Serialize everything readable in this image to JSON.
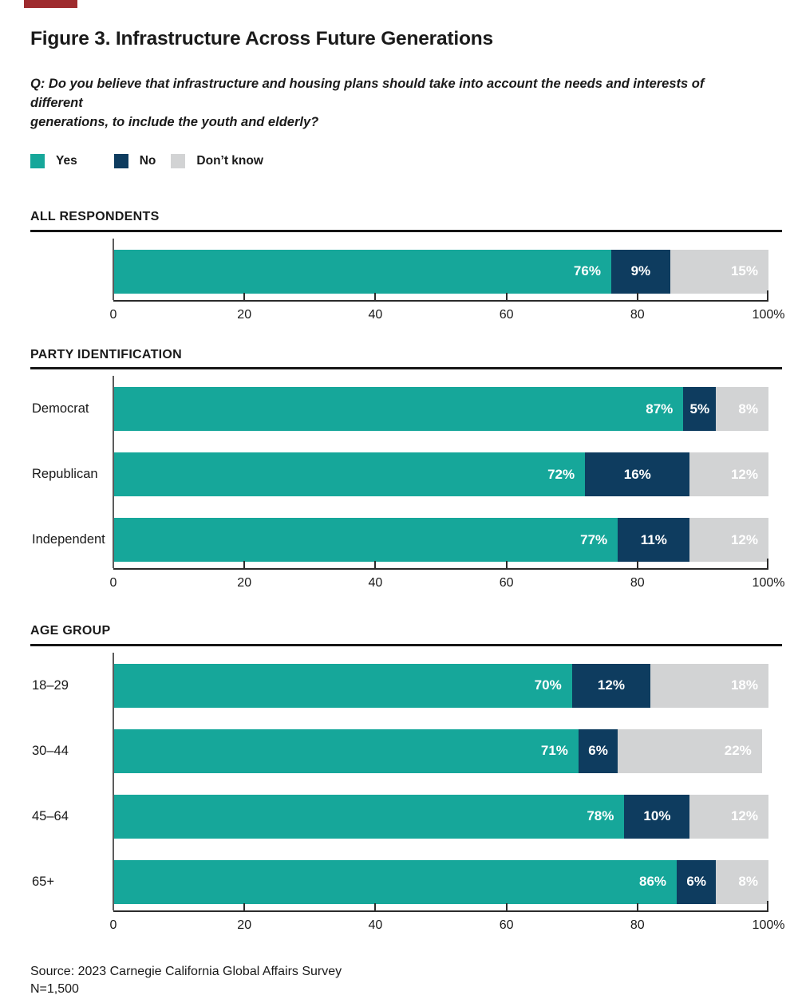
{
  "accent_color": "#9e2b2e",
  "figure": {
    "title": "Figure 3. Infrastructure Across Future Generations",
    "question": "Q: Do you believe that infrastructure and housing plans should take into account the needs and interests of different\ngenerations, to include the youth and elderly?",
    "source": "Source: 2023 Carnegie California Global Affairs Survey",
    "sample_size": "N=1,500"
  },
  "legend": [
    {
      "label": "Yes",
      "color": "#16a79a"
    },
    {
      "label": "No",
      "color": "#0e3c5f"
    },
    {
      "label": "Don’t know",
      "color": "#d2d3d4"
    }
  ],
  "axis": {
    "values": [
      0,
      20,
      40,
      60,
      80,
      100
    ],
    "labels": [
      "0",
      "20",
      "40",
      "60",
      "80",
      "100%"
    ]
  },
  "chart_data": [
    {
      "type": "bar",
      "orientation": "horizontal",
      "stacked": true,
      "title": "ALL RESPONDENTS",
      "categories": [
        ""
      ],
      "xlim": [
        0,
        100
      ],
      "series": [
        {
          "name": "Yes",
          "values": [
            76
          ]
        },
        {
          "name": "No",
          "values": [
            9
          ]
        },
        {
          "name": "Don’t know",
          "values": [
            15
          ]
        }
      ]
    },
    {
      "type": "bar",
      "orientation": "horizontal",
      "stacked": true,
      "title": "PARTY IDENTIFICATION",
      "categories": [
        "Democrat",
        "Republican",
        "Independent"
      ],
      "xlim": [
        0,
        100
      ],
      "series": [
        {
          "name": "Yes",
          "values": [
            87,
            72,
            77
          ]
        },
        {
          "name": "No",
          "values": [
            5,
            16,
            11
          ]
        },
        {
          "name": "Don’t know",
          "values": [
            8,
            12,
            12
          ]
        }
      ]
    },
    {
      "type": "bar",
      "orientation": "horizontal",
      "stacked": true,
      "title": "AGE GROUP",
      "categories": [
        "18–29",
        "30–44",
        "45–64",
        "65+"
      ],
      "xlim": [
        0,
        100
      ],
      "series": [
        {
          "name": "Yes",
          "values": [
            70,
            71,
            78,
            86
          ]
        },
        {
          "name": "No",
          "values": [
            12,
            6,
            10,
            6
          ]
        },
        {
          "name": "Don’t know",
          "values": [
            18,
            22,
            12,
            8
          ]
        }
      ]
    }
  ]
}
